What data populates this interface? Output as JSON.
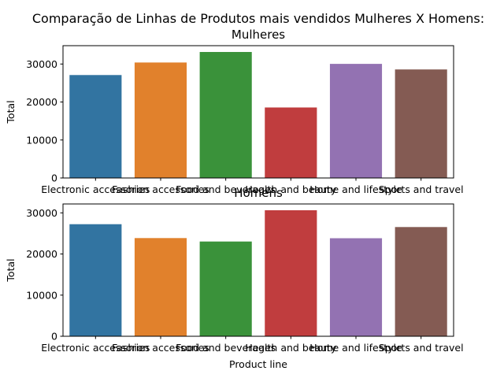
{
  "figure": {
    "title": "Comparação de Linhas de Produtos mais vendidos Mulheres X Homens:"
  },
  "chart_data": [
    {
      "type": "bar",
      "title": "Mulheres",
      "xlabel": "",
      "ylabel": "Total",
      "categories": [
        "Electronic accessories",
        "Fashion accessories",
        "Food and beverages",
        "Health and beauty",
        "Home and lifestyle",
        "Sports and travel"
      ],
      "values": [
        27100,
        30400,
        33170,
        18560,
        30040,
        28570
      ],
      "colors": [
        "#3274a1",
        "#e1812c",
        "#3a923a",
        "#c03d3e",
        "#9372b2",
        "#845b53"
      ],
      "yticks": [
        0,
        10000,
        20000,
        30000
      ],
      "ylim": [
        0,
        34830
      ],
      "grid": false,
      "legend": "none"
    },
    {
      "type": "bar",
      "title": "Homens",
      "xlabel": "Product line",
      "ylabel": "Total",
      "categories": [
        "Electronic accessories",
        "Fashion accessories",
        "Food and beverages",
        "Health and beauty",
        "Home and lifestyle",
        "Sports and travel"
      ],
      "values": [
        27240,
        23870,
        23030,
        30630,
        23830,
        26550
      ],
      "colors": [
        "#3274a1",
        "#e1812c",
        "#3a923a",
        "#c03d3e",
        "#9372b2",
        "#845b53"
      ],
      "yticks": [
        0,
        10000,
        20000,
        30000
      ],
      "ylim": [
        0,
        32160
      ],
      "grid": false,
      "legend": "none"
    }
  ]
}
